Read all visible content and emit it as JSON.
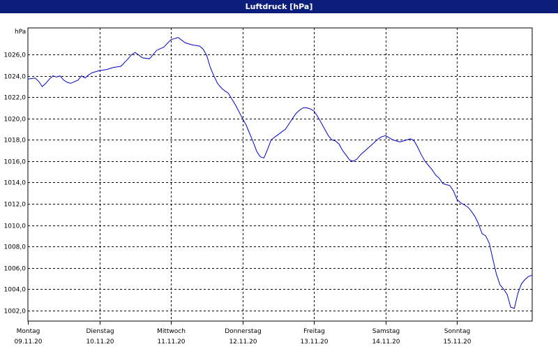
{
  "window": {
    "title": "Luftdruck [hPa]"
  },
  "chart_data": {
    "type": "line",
    "title": "Luftdruck [hPa]",
    "ylabel": "hPa",
    "xlabel": "",
    "ylim": [
      1001,
      1028.5
    ],
    "y_ticks": [
      1002,
      1004,
      1006,
      1008,
      1010,
      1012,
      1014,
      1016,
      1018,
      1020,
      1022,
      1024,
      1026
    ],
    "y_tick_labels": [
      "1002,0",
      "1004,0",
      "1006,0",
      "1008,0",
      "1010,0",
      "1012,0",
      "1014,0",
      "1016,0",
      "1018,0",
      "1020,0",
      "1022,0",
      "1024,0",
      "1026,0"
    ],
    "x_days": [
      {
        "weekday": "Montag",
        "date": "09.11.20"
      },
      {
        "weekday": "Dienstag",
        "date": "10.11.20"
      },
      {
        "weekday": "Mittwoch",
        "date": "11.11.20"
      },
      {
        "weekday": "Donnerstag",
        "date": "12.11.20"
      },
      {
        "weekday": "Freitag",
        "date": "13.11.20"
      },
      {
        "weekday": "Samstag",
        "date": "14.11.20"
      },
      {
        "weekday": "Sonntag",
        "date": "15.11.20"
      }
    ],
    "xlim": [
      0,
      7.05
    ],
    "grid": true,
    "line_color": "#0000cc",
    "series": [
      {
        "name": "",
        "x": [
          0,
          0.1,
          0.15,
          0.2,
          0.25,
          0.3,
          0.35,
          0.4,
          0.45,
          0.5,
          0.55,
          0.6,
          0.7,
          0.75,
          0.8,
          0.85,
          0.9,
          1.0,
          1.1,
          1.2,
          1.3,
          1.4,
          1.45,
          1.5,
          1.6,
          1.7,
          1.8,
          1.9,
          2.0,
          2.05,
          2.1,
          2.2,
          2.3,
          2.4,
          2.45,
          2.5,
          2.55,
          2.6,
          2.65,
          2.7,
          2.75,
          2.8,
          2.9,
          3.0,
          3.05,
          3.1,
          3.15,
          3.2,
          3.25,
          3.3,
          3.35,
          3.4,
          3.5,
          3.6,
          3.65,
          3.7,
          3.75,
          3.8,
          3.85,
          3.9,
          3.95,
          4.0,
          4.05,
          4.1,
          4.15,
          4.2,
          4.25,
          4.3,
          4.35,
          4.4,
          4.5,
          4.55,
          4.6,
          4.65,
          4.7,
          4.75,
          4.8,
          4.85,
          4.9,
          4.95,
          5.0,
          5.05,
          5.1,
          5.15,
          5.2,
          5.25,
          5.3,
          5.35,
          5.4,
          5.45,
          5.5,
          5.55,
          5.6,
          5.65,
          5.7,
          5.75,
          5.8,
          5.85,
          5.9,
          5.95,
          6.0,
          6.05,
          6.1,
          6.15,
          6.2,
          6.25,
          6.3,
          6.35,
          6.4,
          6.45,
          6.5,
          6.55,
          6.6,
          6.65,
          6.7,
          6.75,
          6.8,
          6.85,
          6.9,
          6.95,
          7.0,
          7.05
        ],
        "values": [
          1023.7,
          1023.8,
          1023.5,
          1023.0,
          1023.3,
          1023.7,
          1024.0,
          1023.9,
          1024.0,
          1023.6,
          1023.4,
          1023.3,
          1023.6,
          1024.0,
          1023.8,
          1024.1,
          1024.3,
          1024.5,
          1024.6,
          1024.8,
          1024.9,
          1025.6,
          1026.0,
          1026.2,
          1025.7,
          1025.6,
          1026.4,
          1026.7,
          1027.4,
          1027.5,
          1027.6,
          1027.1,
          1026.9,
          1026.8,
          1026.5,
          1025.9,
          1024.8,
          1024.0,
          1023.3,
          1022.9,
          1022.6,
          1022.4,
          1021.3,
          1020.0,
          1019.4,
          1018.6,
          1017.8,
          1016.9,
          1016.4,
          1016.3,
          1017.1,
          1018.0,
          1018.5,
          1019.0,
          1019.5,
          1020.0,
          1020.5,
          1020.8,
          1021.0,
          1021.0,
          1020.9,
          1020.7,
          1020.2,
          1019.6,
          1019.0,
          1018.4,
          1018.0,
          1017.9,
          1017.6,
          1017.0,
          1016.1,
          1016.0,
          1016.2,
          1016.6,
          1016.9,
          1017.2,
          1017.5,
          1017.8,
          1018.1,
          1018.3,
          1018.4,
          1018.2,
          1018.0,
          1017.9,
          1017.8,
          1017.9,
          1018.0,
          1018.1,
          1017.9,
          1017.3,
          1016.6,
          1016.0,
          1015.6,
          1015.2,
          1014.7,
          1014.4,
          1013.9,
          1013.8,
          1013.7,
          1013.2,
          1012.4,
          1012.1,
          1011.9,
          1011.7,
          1011.3,
          1010.8,
          1010.1,
          1009.2,
          1009.0,
          1008.3,
          1006.8,
          1005.4,
          1004.4,
          1004.0,
          1003.5,
          1002.3,
          1002.2,
          1003.6,
          1004.5,
          1004.9,
          1005.2,
          1005.3
        ]
      }
    ]
  }
}
